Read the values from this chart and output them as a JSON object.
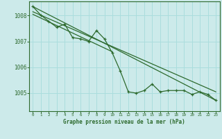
{
  "bg_color": "#cceaea",
  "grid_color": "#aadddd",
  "line_color": "#2d6a2d",
  "title": "Graphe pression niveau de la mer (hPa)",
  "xlim": [
    -0.5,
    23.5
  ],
  "ylim": [
    1004.3,
    1008.55
  ],
  "yticks": [
    1005,
    1006,
    1007,
    1008
  ],
  "xticks": [
    0,
    1,
    2,
    3,
    4,
    5,
    6,
    7,
    8,
    9,
    10,
    11,
    12,
    13,
    14,
    15,
    16,
    17,
    18,
    19,
    20,
    21,
    22,
    23
  ],
  "main_series": [
    [
      0,
      1008.35
    ],
    [
      1,
      1008.02
    ],
    [
      2,
      1007.78
    ],
    [
      3,
      1007.55
    ],
    [
      4,
      1007.67
    ],
    [
      5,
      1007.15
    ],
    [
      6,
      1007.1
    ],
    [
      7,
      1007.0
    ],
    [
      8,
      1007.42
    ],
    [
      9,
      1007.1
    ],
    [
      10,
      1006.55
    ],
    [
      11,
      1005.85
    ],
    [
      12,
      1005.05
    ],
    [
      13,
      1005.0
    ],
    [
      14,
      1005.1
    ],
    [
      15,
      1005.35
    ],
    [
      16,
      1005.05
    ],
    [
      17,
      1005.1
    ],
    [
      18,
      1005.1
    ],
    [
      19,
      1005.1
    ],
    [
      20,
      1004.95
    ],
    [
      21,
      1005.05
    ],
    [
      22,
      1004.95
    ],
    [
      23,
      1004.72
    ]
  ],
  "trend_line1": [
    [
      0,
      1008.35
    ],
    [
      23,
      1004.72
    ]
  ],
  "trend_line2": [
    [
      0,
      1008.15
    ],
    [
      23,
      1005.05
    ]
  ],
  "trend_line3": [
    [
      0,
      1008.05
    ],
    [
      10,
      1006.6
    ]
  ]
}
